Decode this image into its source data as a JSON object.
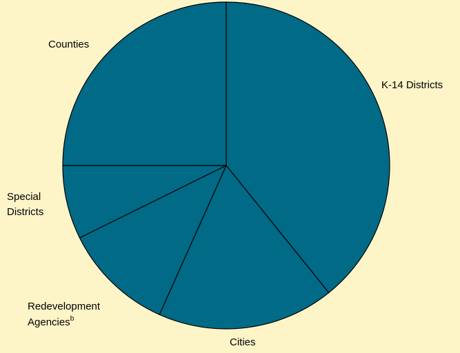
{
  "chart_data": {
    "type": "pie",
    "start_angle_deg": 0,
    "direction": "clockwise",
    "fill_color": "#006a87",
    "edge_color": "#000000",
    "background_color": "#fdf4c8",
    "slices": [
      {
        "label": "K-14 Districts",
        "value": 39.2
      },
      {
        "label": "Cities",
        "value": 17.5
      },
      {
        "label": "Redevelopment Agencies",
        "superscript": "b",
        "value": 11.0
      },
      {
        "label": "Special Districts",
        "value": 7.3
      },
      {
        "label": "Counties",
        "value": 25.0
      }
    ]
  }
}
